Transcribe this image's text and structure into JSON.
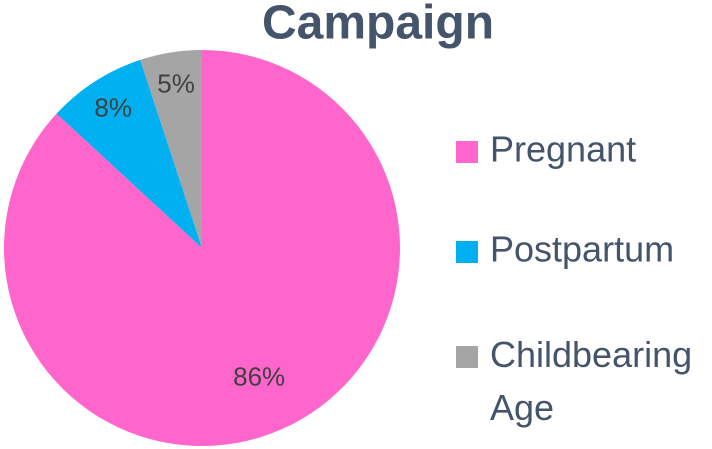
{
  "chart_data": {
    "type": "pie",
    "title": "Campaign",
    "categories": [
      "Pregnant",
      "Postpartum",
      "Childbearing Age"
    ],
    "values": [
      86,
      8,
      5
    ],
    "value_labels": [
      "86%",
      "8%",
      "5%"
    ],
    "colors": [
      "#ff66cc",
      "#00b0f0",
      "#a5a5a5"
    ],
    "legend": "right"
  }
}
